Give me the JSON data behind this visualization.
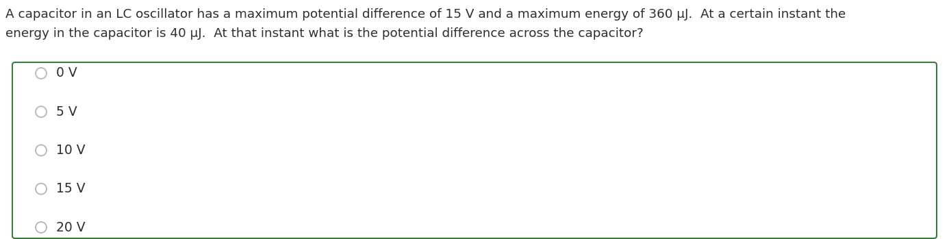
{
  "question_line1": "A capacitor in an LC oscillator has a maximum potential difference of 15 V and a maximum energy of 360 μJ.  At a certain instant the",
  "question_line2": "energy in the capacitor is 40 μJ.  At that instant what is the potential difference across the capacitor?",
  "options": [
    "0 V",
    "5 V",
    "10 V",
    "15 V",
    "20 V"
  ],
  "question_color": "#2d2d2d",
  "box_edge_color": "#3a7a3a",
  "background_color": "#ffffff",
  "radio_edge_color": "#bbbbbb",
  "option_text_color": "#2d2d2d",
  "question_fontsize": 13.2,
  "option_fontsize": 13.5,
  "fig_width": 13.86,
  "fig_height": 3.49,
  "dpi": 100
}
